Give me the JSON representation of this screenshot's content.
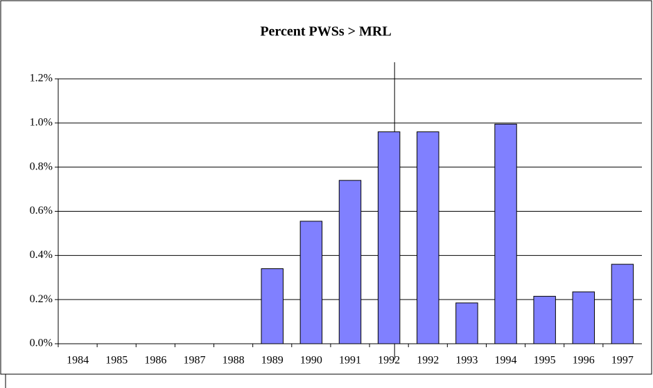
{
  "chart_data": {
    "type": "bar",
    "title": "Percent PWSs > MRL",
    "categories": [
      "1984",
      "1985",
      "1986",
      "1987",
      "1988",
      "1989",
      "1990",
      "1991",
      "1992",
      "1992",
      "1993",
      "1994",
      "1995",
      "1996",
      "1997"
    ],
    "values": [
      0,
      0,
      0,
      0,
      0,
      0.34,
      0.555,
      0.74,
      0.96,
      0.96,
      0.185,
      0.995,
      0.215,
      0.235,
      0.36
    ],
    "color": "#8080ff",
    "ylim": [
      0,
      1.2
    ],
    "yticks": [
      {
        "value": 0,
        "label": "0.0%"
      },
      {
        "value": 0.2,
        "label": "0.2%"
      },
      {
        "value": 0.4,
        "label": "0.4%"
      },
      {
        "value": 0.6,
        "label": "0.6%"
      },
      {
        "value": 0.8,
        "label": "0.8%"
      },
      {
        "value": 1.0,
        "label": "1.0%"
      },
      {
        "value": 1.2,
        "label": "1.2%"
      }
    ],
    "grid": true
  }
}
